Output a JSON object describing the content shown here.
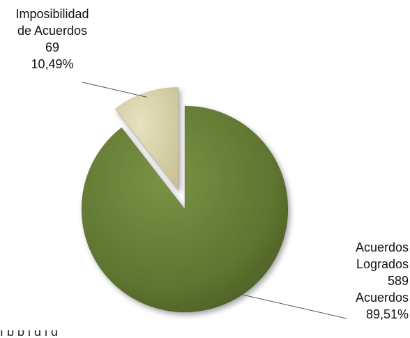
{
  "chart_data": {
    "type": "pie",
    "exploded": true,
    "slices": [
      {
        "label": "Imposibilidad de Acuerdos",
        "label_line1": "Imposibilidad",
        "label_line2": "de Acuerdos",
        "value": 69,
        "value_text": "69",
        "percent": 10.49,
        "percent_text": "10,49%",
        "color": "#D7D0A6"
      },
      {
        "label": "Acuerdos Logrados",
        "label_line1": "Acuerdos",
        "label_line2": "Logrados",
        "value": 589,
        "value_text": "589",
        "unit_text": "Acuerdos",
        "percent": 89.51,
        "percent_text": "89,51%",
        "color": "#5E7530"
      }
    ]
  },
  "footer": {
    "cut_text": "f       b             b     l                     d  l            d"
  }
}
